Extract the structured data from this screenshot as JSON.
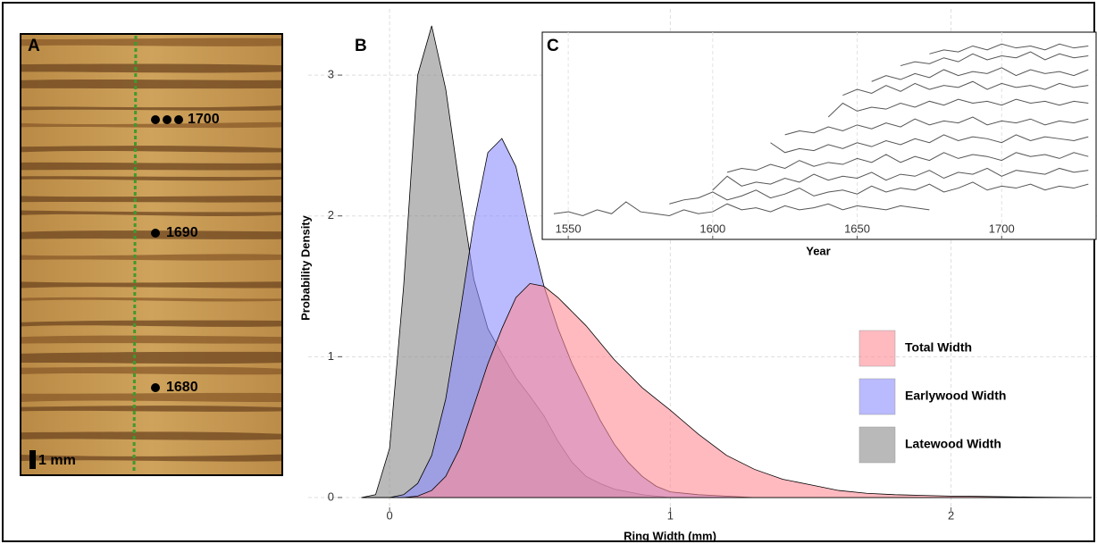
{
  "panel_a": {
    "panel_label": "A",
    "annotations": [
      "1700",
      "1690",
      "1680"
    ],
    "scale_bar": "1 mm"
  },
  "chart_data": [
    {
      "type": "density",
      "panel_label": "B",
      "x_label": "Ring Width (mm)",
      "y_label": "Probability Density",
      "x": [
        -0.1,
        -0.05,
        0,
        0.05,
        0.1,
        0.15,
        0.2,
        0.25,
        0.3,
        0.35,
        0.4,
        0.45,
        0.5,
        0.55,
        0.6,
        0.65,
        0.7,
        0.75,
        0.8,
        0.85,
        0.9,
        0.95,
        1.0,
        1.1,
        1.2,
        1.3,
        1.4,
        1.5,
        1.6,
        1.7,
        1.8,
        1.9,
        2.0,
        2.1,
        2.2,
        2.3,
        2.4,
        2.5
      ],
      "series": [
        {
          "name": "Total Width",
          "color": "#ff8c96",
          "values": [
            0,
            0,
            0,
            0,
            0.01,
            0.05,
            0.15,
            0.35,
            0.65,
            0.95,
            1.2,
            1.42,
            1.52,
            1.5,
            1.42,
            1.32,
            1.22,
            1.1,
            0.98,
            0.88,
            0.78,
            0.7,
            0.62,
            0.45,
            0.3,
            0.2,
            0.13,
            0.09,
            0.05,
            0.03,
            0.02,
            0.015,
            0.01,
            0.008,
            0.005,
            0.003,
            0.001,
            0
          ]
        },
        {
          "name": "Earlywood Width",
          "color": "#8c8cff",
          "values": [
            0,
            0,
            0,
            0.02,
            0.1,
            0.3,
            0.7,
            1.3,
            1.95,
            2.45,
            2.55,
            2.35,
            1.9,
            1.5,
            1.2,
            0.95,
            0.75,
            0.55,
            0.38,
            0.25,
            0.15,
            0.08,
            0.04,
            0.02,
            0.01,
            0,
            0,
            0,
            0,
            0,
            0,
            0,
            0,
            0,
            0,
            0,
            0,
            0
          ]
        },
        {
          "name": "Latewood Width",
          "color": "#8a8a8a",
          "values": [
            0,
            0.02,
            0.35,
            1.5,
            3.0,
            3.35,
            2.9,
            2.2,
            1.55,
            1.2,
            1.02,
            0.85,
            0.72,
            0.58,
            0.4,
            0.25,
            0.15,
            0.1,
            0.06,
            0.04,
            0.02,
            0.01,
            0,
            0,
            0,
            0,
            0,
            0,
            0,
            0,
            0,
            0,
            0,
            0,
            0,
            0,
            0,
            0
          ]
        }
      ],
      "xlim": [
        -0.29,
        2.52
      ],
      "ylim": [
        -0.07,
        3.47
      ],
      "xticks": [
        0,
        1,
        2
      ],
      "yticks": [
        0,
        1,
        2,
        3
      ],
      "grid": true,
      "legend": "lower right"
    },
    {
      "type": "line",
      "panel_label": "C",
      "x_label": "Year",
      "color": "#555555",
      "x": [
        1545,
        1550,
        1555,
        1560,
        1565,
        1570,
        1575,
        1580,
        1585,
        1590,
        1595,
        1600,
        1605,
        1610,
        1615,
        1620,
        1625,
        1630,
        1635,
        1640,
        1645,
        1650,
        1655,
        1660,
        1665,
        1670,
        1675,
        1680,
        1685,
        1690,
        1695,
        1700,
        1705,
        1710,
        1715,
        1720,
        1725,
        1730
      ],
      "series": [
        {
          "values": [
            1.3,
            1.4,
            1.2,
            1.5,
            1.3,
            1.9,
            1.4,
            1.3,
            1.2,
            1.5,
            1.3,
            1.4,
            1.8,
            1.5,
            1.6,
            1.4,
            1.7,
            1.5,
            1.6,
            1.8,
            1.5,
            1.7,
            1.6,
            1.5,
            1.7,
            1.6,
            1.5,
            null,
            null,
            null,
            null,
            null,
            null,
            null,
            null,
            null,
            null,
            null
          ]
        },
        {
          "values": [
            null,
            null,
            null,
            null,
            null,
            null,
            null,
            null,
            1.8,
            2.0,
            2.1,
            2.4,
            2.0,
            2.2,
            2.5,
            2.1,
            2.3,
            2.6,
            2.2,
            2.4,
            2.5,
            2.3,
            2.7,
            2.4,
            2.6,
            2.5,
            2.8,
            2.4,
            2.6,
            2.9,
            2.5,
            2.7,
            2.6,
            2.8,
            2.5,
            2.7,
            2.6,
            2.8
          ]
        },
        {
          "values": [
            null,
            null,
            null,
            null,
            null,
            null,
            null,
            null,
            null,
            null,
            null,
            2.5,
            3.2,
            2.7,
            2.9,
            2.8,
            3.1,
            2.9,
            3.3,
            3.0,
            3.2,
            3.1,
            3.4,
            3.0,
            3.3,
            3.2,
            3.5,
            3.1,
            3.4,
            3.3,
            3.6,
            3.2,
            3.5,
            3.4,
            3.3,
            3.6,
            3.4,
            3.5
          ]
        },
        {
          "values": [
            null,
            null,
            null,
            null,
            null,
            null,
            null,
            null,
            null,
            null,
            null,
            null,
            3.4,
            3.6,
            3.5,
            3.8,
            3.6,
            4.0,
            3.7,
            3.9,
            3.8,
            4.1,
            3.9,
            4.3,
            3.9,
            4.2,
            4.0,
            4.4,
            4.1,
            4.3,
            4.2,
            4.0,
            4.4,
            4.2,
            4.3,
            4.1,
            4.4,
            4.2
          ]
        },
        {
          "values": [
            null,
            null,
            null,
            null,
            null,
            null,
            null,
            null,
            null,
            null,
            null,
            null,
            null,
            null,
            null,
            4.9,
            4.4,
            4.6,
            4.5,
            4.8,
            4.6,
            4.9,
            4.7,
            5.0,
            4.8,
            5.1,
            4.9,
            5.3,
            5.0,
            5.2,
            5.1,
            4.9,
            5.3,
            5.0,
            5.2,
            5.1,
            5.0,
            5.2
          ]
        },
        {
          "values": [
            null,
            null,
            null,
            null,
            null,
            null,
            null,
            null,
            null,
            null,
            null,
            null,
            null,
            null,
            null,
            null,
            5.3,
            5.5,
            5.4,
            5.7,
            5.5,
            5.8,
            5.6,
            5.9,
            5.7,
            6.1,
            5.8,
            6.0,
            5.9,
            6.2,
            5.8,
            6.0,
            5.9,
            6.1,
            5.8,
            6.0,
            5.9,
            6.1
          ]
        },
        {
          "values": [
            null,
            null,
            null,
            null,
            null,
            null,
            null,
            null,
            null,
            null,
            null,
            null,
            null,
            null,
            null,
            null,
            null,
            null,
            null,
            6.2,
            6.9,
            6.5,
            6.7,
            6.6,
            6.9,
            6.7,
            7.0,
            6.8,
            7.1,
            6.9,
            7.0,
            6.8,
            7.1,
            6.9,
            7.0,
            6.8,
            7.0,
            6.9
          ]
        },
        {
          "values": [
            null,
            null,
            null,
            null,
            null,
            null,
            null,
            null,
            null,
            null,
            null,
            null,
            null,
            null,
            null,
            null,
            null,
            null,
            null,
            null,
            7.3,
            7.6,
            7.4,
            7.8,
            7.5,
            7.9,
            7.6,
            7.8,
            7.7,
            8.0,
            7.6,
            7.9,
            7.7,
            7.8,
            7.6,
            7.9,
            7.7,
            7.8
          ]
        },
        {
          "values": [
            null,
            null,
            null,
            null,
            null,
            null,
            null,
            null,
            null,
            null,
            null,
            null,
            null,
            null,
            null,
            null,
            null,
            null,
            null,
            null,
            null,
            null,
            8.0,
            8.3,
            8.1,
            8.4,
            8.2,
            8.6,
            8.3,
            8.5,
            8.4,
            8.7,
            8.3,
            8.6,
            8.4,
            8.5,
            8.3,
            8.6
          ]
        },
        {
          "values": [
            null,
            null,
            null,
            null,
            null,
            null,
            null,
            null,
            null,
            null,
            null,
            null,
            null,
            null,
            null,
            null,
            null,
            null,
            null,
            null,
            null,
            null,
            null,
            null,
            8.8,
            9.0,
            8.9,
            9.2,
            9.0,
            9.4,
            9.1,
            9.3,
            9.2,
            9.5,
            9.1,
            9.4,
            9.2,
            9.3
          ]
        },
        {
          "values": [
            null,
            null,
            null,
            null,
            null,
            null,
            null,
            null,
            null,
            null,
            null,
            null,
            null,
            null,
            null,
            null,
            null,
            null,
            null,
            null,
            null,
            null,
            null,
            null,
            null,
            null,
            9.4,
            9.6,
            9.5,
            9.8,
            9.6,
            9.9,
            9.7,
            9.8,
            9.6,
            9.9,
            9.7,
            9.8
          ]
        }
      ],
      "xlim": [
        1541,
        1733
      ],
      "ylim": [
        0,
        10.5
      ],
      "xticks": [
        1550,
        1600,
        1650,
        1700
      ],
      "grid": true
    }
  ]
}
